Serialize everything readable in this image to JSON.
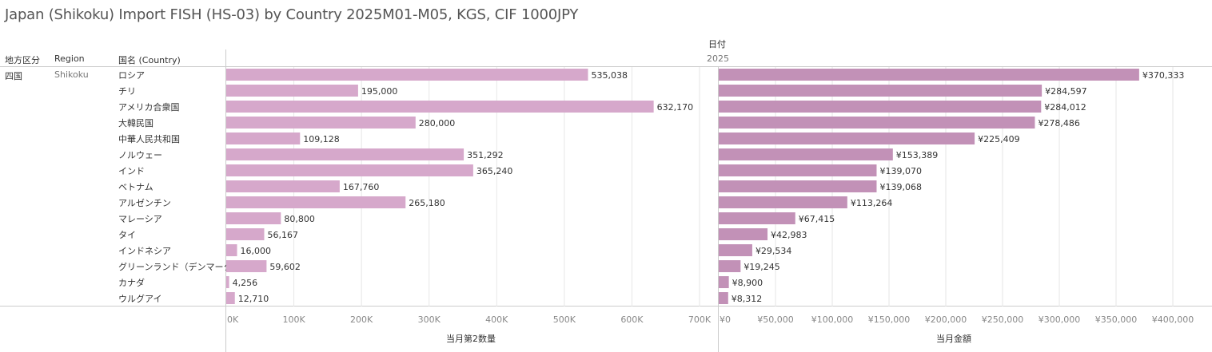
{
  "title": "Japan (Shikoku) Import FISH (HS-03) by Country 2025M01-M05, KGS, CIF 1000JPY",
  "headers": {
    "region_jp": "地方区分",
    "region_en": "Region",
    "country": "国名 (Country)",
    "date_label": "日付",
    "year": "2025"
  },
  "row_group": {
    "region_jp": "四国",
    "region_en": "Shikoku"
  },
  "colors": {
    "qty_bar": "#d6a8cb",
    "amt_bar": "#c291b7",
    "grid": "#e6e6e6",
    "axis_text": "#888888"
  },
  "chart_data": [
    {
      "type": "bar",
      "orientation": "horizontal",
      "xlabel": "当月第2数量",
      "xlim": [
        0,
        700000
      ],
      "ticks": [
        "0K",
        "100K",
        "200K",
        "300K",
        "400K",
        "500K",
        "600K",
        "700K"
      ],
      "categories": [
        "ロシア",
        "チリ",
        "アメリカ合衆国",
        "大韓民国",
        "中華人民共和国",
        "ノルウェー",
        "インド",
        "ベトナム",
        "アルゼンチン",
        "マレーシア",
        "タイ",
        "インドネシア",
        "グリーンランド（デンマーク）",
        "カナダ",
        "ウルグアイ"
      ],
      "values": [
        535038,
        195000,
        632170,
        280000,
        109128,
        351292,
        365240,
        167760,
        265180,
        80800,
        56167,
        16000,
        59602,
        4256,
        12710
      ],
      "labels": [
        "535,038",
        "195,000",
        "632,170",
        "280,000",
        "109,128",
        "351,292",
        "365,240",
        "167,760",
        "265,180",
        "80,800",
        "56,167",
        "16,000",
        "59,602",
        "4,256",
        "12,710"
      ]
    },
    {
      "type": "bar",
      "orientation": "horizontal",
      "xlabel": "当月金額",
      "xlim": [
        0,
        400000
      ],
      "ticks": [
        "¥0",
        "¥50,000",
        "¥100,000",
        "¥150,000",
        "¥200,000",
        "¥250,000",
        "¥300,000",
        "¥350,000",
        "¥400,000"
      ],
      "categories": [
        "ロシア",
        "チリ",
        "アメリカ合衆国",
        "大韓民国",
        "中華人民共和国",
        "ノルウェー",
        "インド",
        "ベトナム",
        "アルゼンチン",
        "マレーシア",
        "タイ",
        "インドネシア",
        "グリーンランド（デンマーク）",
        "カナダ",
        "ウルグアイ"
      ],
      "values": [
        370333,
        284597,
        284012,
        278486,
        225409,
        153389,
        139070,
        139068,
        113264,
        67415,
        42983,
        29534,
        19245,
        8900,
        8312
      ],
      "labels": [
        "¥370,333",
        "¥284,597",
        "¥284,012",
        "¥278,486",
        "¥225,409",
        "¥153,389",
        "¥139,070",
        "¥139,068",
        "¥113,264",
        "¥67,415",
        "¥42,983",
        "¥29,534",
        "¥19,245",
        "¥8,900",
        "¥8,312"
      ]
    }
  ]
}
